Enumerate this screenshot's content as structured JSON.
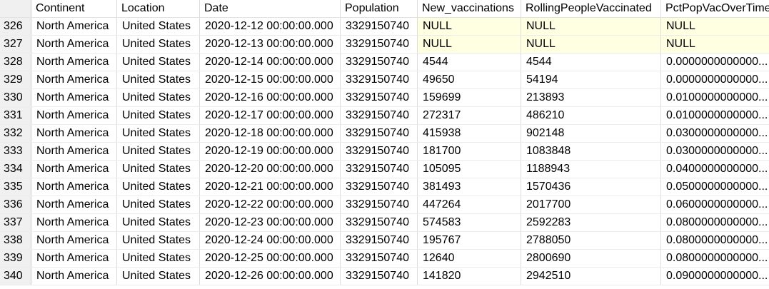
{
  "columns": [
    "Continent",
    "Location",
    "Date",
    "Population",
    "New_vaccinations",
    "RollingPeopleVaccinated",
    "PctPopVacOverTime"
  ],
  "rows": [
    {
      "num": "326",
      "cells": [
        "North America",
        "United States",
        "2020-12-12 00:00:00.000",
        "3329150740",
        "NULL",
        "NULL",
        "NULL"
      ]
    },
    {
      "num": "327",
      "cells": [
        "North America",
        "United States",
        "2020-12-13 00:00:00.000",
        "3329150740",
        "NULL",
        "NULL",
        "NULL"
      ]
    },
    {
      "num": "328",
      "cells": [
        "North America",
        "United States",
        "2020-12-14 00:00:00.000",
        "3329150740",
        "4544",
        "4544",
        "0.0000000000000..."
      ]
    },
    {
      "num": "329",
      "cells": [
        "North America",
        "United States",
        "2020-12-15 00:00:00.000",
        "3329150740",
        "49650",
        "54194",
        "0.0000000000000..."
      ]
    },
    {
      "num": "330",
      "cells": [
        "North America",
        "United States",
        "2020-12-16 00:00:00.000",
        "3329150740",
        "159699",
        "213893",
        "0.0100000000000..."
      ]
    },
    {
      "num": "331",
      "cells": [
        "North America",
        "United States",
        "2020-12-17 00:00:00.000",
        "3329150740",
        "272317",
        "486210",
        "0.0100000000000..."
      ]
    },
    {
      "num": "332",
      "cells": [
        "North America",
        "United States",
        "2020-12-18 00:00:00.000",
        "3329150740",
        "415938",
        "902148",
        "0.0300000000000..."
      ]
    },
    {
      "num": "333",
      "cells": [
        "North America",
        "United States",
        "2020-12-19 00:00:00.000",
        "3329150740",
        "181700",
        "1083848",
        "0.0300000000000..."
      ]
    },
    {
      "num": "334",
      "cells": [
        "North America",
        "United States",
        "2020-12-20 00:00:00.000",
        "3329150740",
        "105095",
        "1188943",
        "0.0400000000000..."
      ]
    },
    {
      "num": "335",
      "cells": [
        "North America",
        "United States",
        "2020-12-21 00:00:00.000",
        "3329150740",
        "381493",
        "1570436",
        "0.0500000000000..."
      ]
    },
    {
      "num": "336",
      "cells": [
        "North America",
        "United States",
        "2020-12-22 00:00:00.000",
        "3329150740",
        "447264",
        "2017700",
        "0.0600000000000..."
      ]
    },
    {
      "num": "337",
      "cells": [
        "North America",
        "United States",
        "2020-12-23 00:00:00.000",
        "3329150740",
        "574583",
        "2592283",
        "0.0800000000000..."
      ]
    },
    {
      "num": "338",
      "cells": [
        "North America",
        "United States",
        "2020-12-24 00:00:00.000",
        "3329150740",
        "195767",
        "2788050",
        "0.0800000000000..."
      ]
    },
    {
      "num": "339",
      "cells": [
        "North America",
        "United States",
        "2020-12-25 00:00:00.000",
        "3329150740",
        "12640",
        "2800690",
        "0.0800000000000..."
      ]
    },
    {
      "num": "340",
      "cells": [
        "North America",
        "United States",
        "2020-12-26 00:00:00.000",
        "3329150740",
        "141820",
        "2942510",
        "0.0900000000000..."
      ]
    }
  ],
  "null_highlight_color": "#ffffe1"
}
